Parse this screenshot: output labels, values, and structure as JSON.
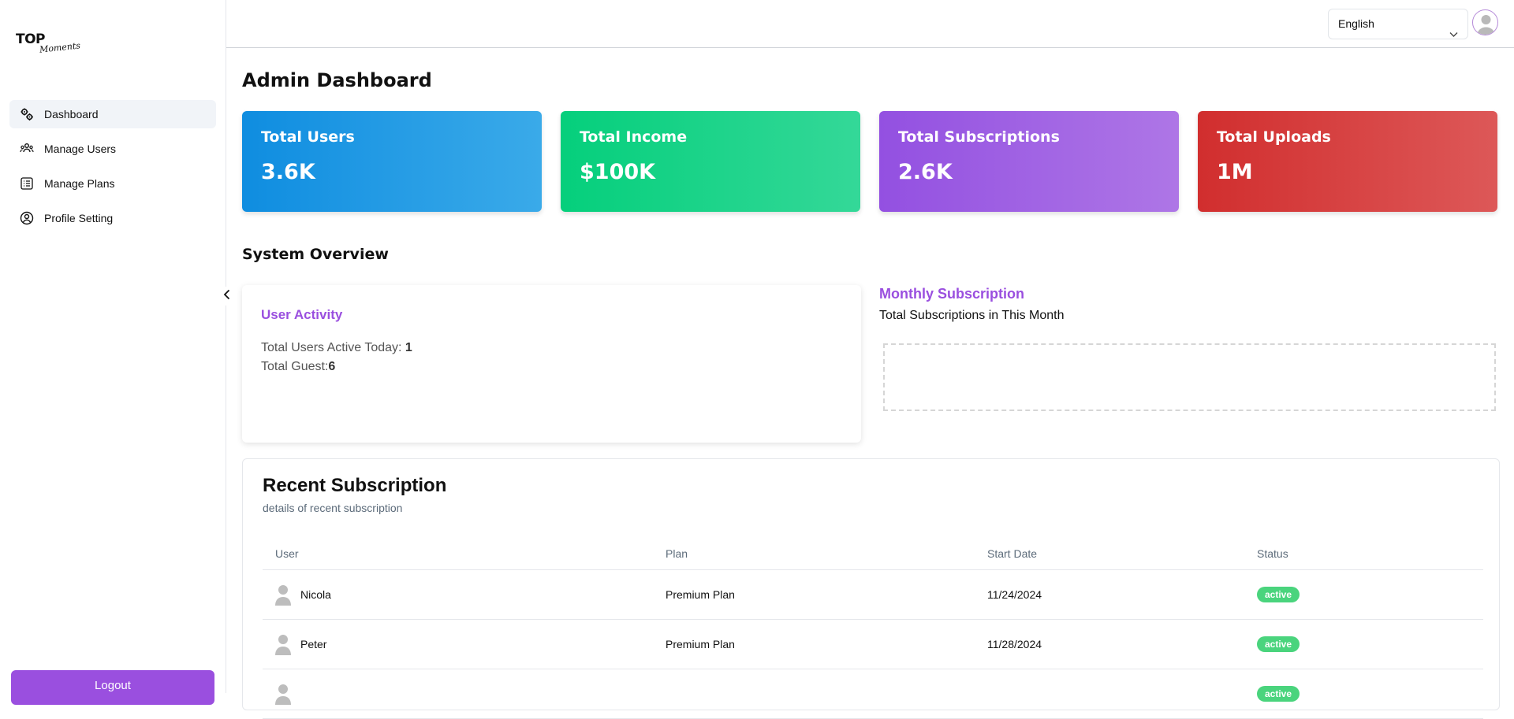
{
  "brand": {
    "logo_top": "TOP",
    "logo_script": "Moments"
  },
  "sidebar": {
    "items": [
      {
        "label": "Dashboard",
        "icon": "gears-icon",
        "active": true
      },
      {
        "label": "Manage Users",
        "icon": "users-icon",
        "active": false
      },
      {
        "label": "Manage Plans",
        "icon": "list-icon",
        "active": false
      },
      {
        "label": "Profile Setting",
        "icon": "user-circle-icon",
        "active": false
      }
    ],
    "logout_label": "Logout"
  },
  "header": {
    "language": "English"
  },
  "main": {
    "title": "Admin Dashboard",
    "cards": [
      {
        "label": "Total Users",
        "value": "3.6K",
        "color": "#0f8de0"
      },
      {
        "label": "Total Income",
        "value": "$100K",
        "color": "#05cf7c"
      },
      {
        "label": "Total Subscriptions",
        "value": "2.6K",
        "color": "#9350e1"
      },
      {
        "label": "Total Uploads",
        "value": "1M",
        "color": "#d12e2e"
      }
    ],
    "overview_title": "System Overview",
    "activity": {
      "title": "User Activity",
      "active_today_label": "Total Users Active Today: ",
      "active_today_value": "1",
      "guest_label": "Total Guest:",
      "guest_value": "6"
    },
    "monthly": {
      "title": "Monthly Subscription",
      "subtitle": "Total Subscriptions in This Month"
    },
    "recent": {
      "title": "Recent Subscription",
      "subtitle": "details of recent subscription",
      "columns": [
        "User",
        "Plan",
        "Start Date",
        "Status"
      ],
      "rows": [
        {
          "user": "Nicola",
          "plan": "Premium Plan",
          "start": "11/24/2024",
          "status": "active"
        },
        {
          "user": "Peter",
          "plan": "Premium Plan",
          "start": "11/28/2024",
          "status": "active"
        },
        {
          "user": "",
          "plan": "",
          "start": "",
          "status": "active"
        }
      ]
    }
  }
}
